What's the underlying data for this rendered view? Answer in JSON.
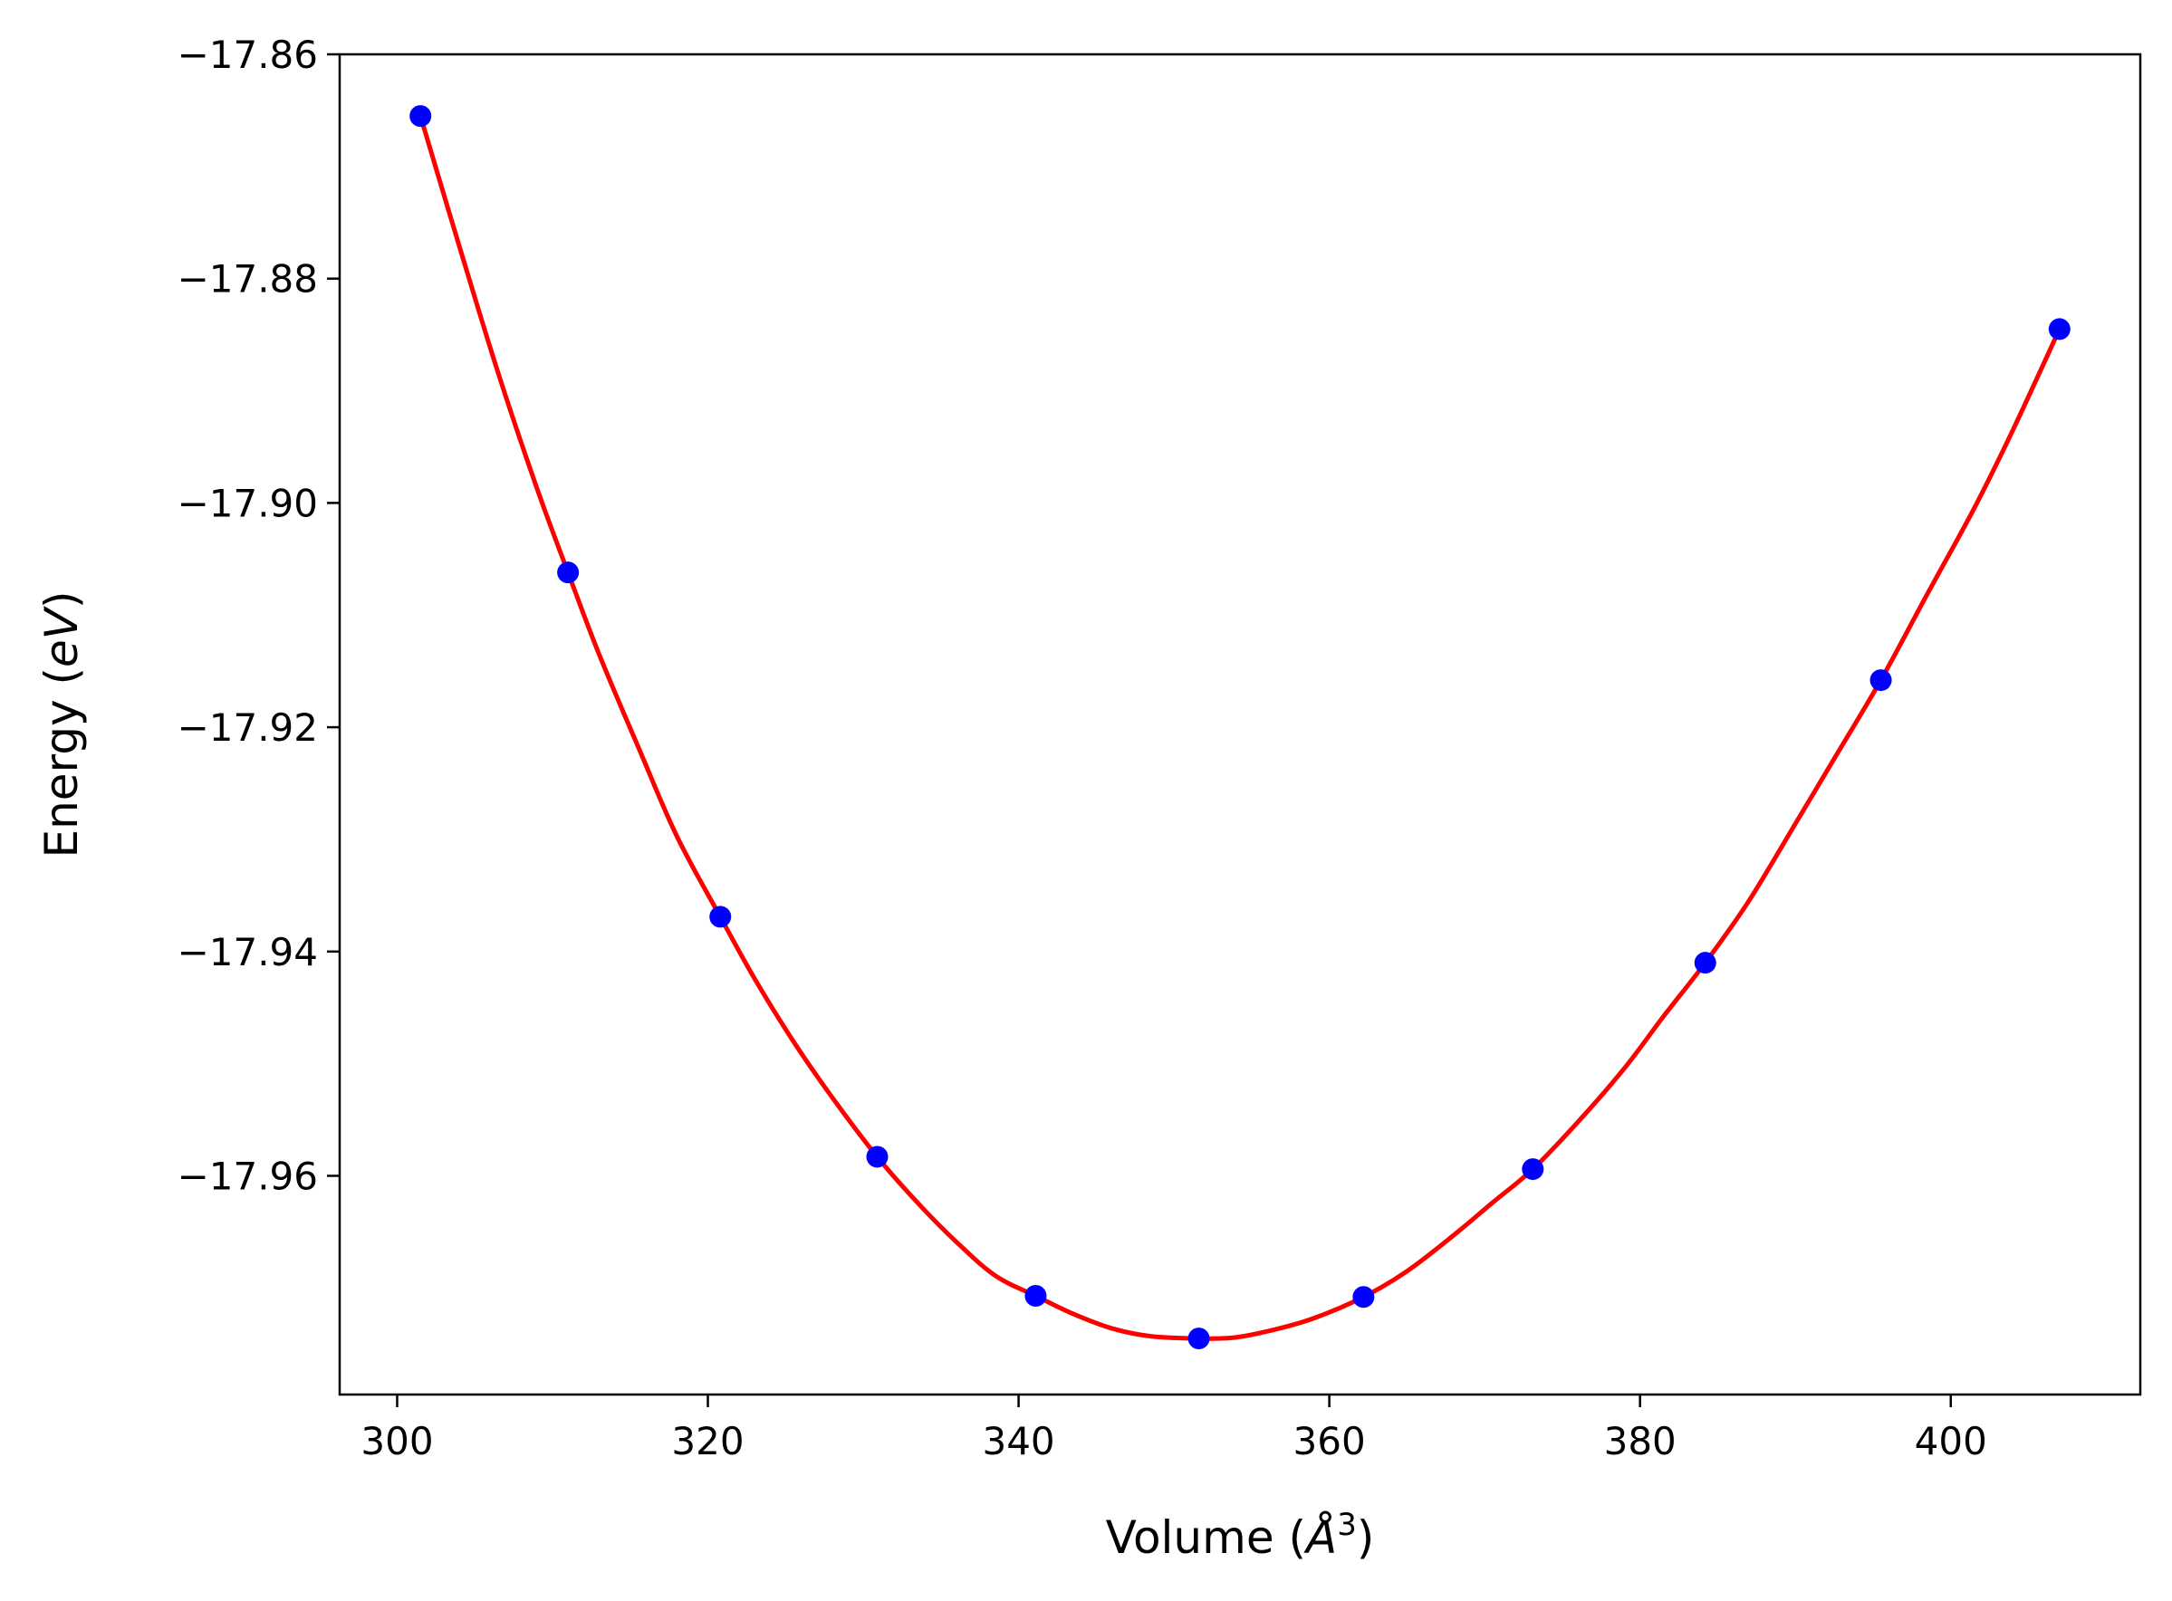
{
  "chart_data": {
    "type": "scatter",
    "xlabel": "Volume (Å³)",
    "ylabel": "Energy (eV)",
    "xlabel_parts": {
      "text": "Volume (",
      "symbol": "Å",
      "sup": "3",
      "close": ")"
    },
    "ylabel_parts": {
      "text": "Energy (",
      "italic": "eV",
      "close": ")"
    },
    "xlim": [
      296.3,
      412.2
    ],
    "ylim": [
      -17.9795,
      -17.86
    ],
    "xticks": [
      300,
      320,
      340,
      360,
      380,
      400
    ],
    "xtick_labels": [
      "300",
      "320",
      "340",
      "360",
      "380",
      "400"
    ],
    "yticks": [
      -17.86,
      -17.88,
      -17.9,
      -17.92,
      -17.94,
      -17.96
    ],
    "ytick_labels": [
      "−17.86",
      "−17.88",
      "−17.90",
      "−17.92",
      "−17.94",
      "−17.96"
    ],
    "grid": false,
    "series": [
      {
        "kind": "points",
        "color": "#0000ff",
        "x": [
          301.5,
          311.0,
          320.8,
          330.9,
          341.1,
          351.6,
          362.2,
          373.1,
          384.2,
          395.5,
          407.0
        ],
        "y": [
          -17.8655,
          -17.9062,
          -17.9369,
          -17.9583,
          -17.9707,
          -17.9745,
          -17.9708,
          -17.9594,
          -17.941,
          -17.9158,
          -17.8845
        ]
      },
      {
        "kind": "fit-curve",
        "color": "#ff0000",
        "x": [
          301.5,
          304.0,
          306.5,
          309.0,
          311.0,
          313.0,
          315.5,
          318.0,
          320.8,
          323.0,
          325.5,
          328.0,
          330.9,
          333.5,
          336.0,
          338.5,
          341.1,
          343.5,
          346.0,
          348.5,
          351.6,
          354.0,
          356.5,
          359.0,
          362.2,
          365.0,
          368.0,
          370.5,
          373.1,
          376.0,
          379.0,
          381.5,
          384.2,
          387.0,
          390.0,
          392.5,
          395.5,
          398.5,
          401.5,
          404.0,
          407.0
        ],
        "y": [
          -17.8655,
          -17.8771,
          -17.8884,
          -17.8987,
          -17.9062,
          -17.9135,
          -17.9217,
          -17.9297,
          -17.9369,
          -17.9424,
          -17.948,
          -17.953,
          -17.9583,
          -17.9624,
          -17.9659,
          -17.9689,
          -17.9707,
          -17.9723,
          -17.9736,
          -17.9743,
          -17.9745,
          -17.9744,
          -17.9737,
          -17.9727,
          -17.9708,
          -17.9685,
          -17.9653,
          -17.9624,
          -17.9594,
          -17.9552,
          -17.9504,
          -17.9458,
          -17.941,
          -17.9355,
          -17.9286,
          -17.9228,
          -17.9158,
          -17.9081,
          -17.9005,
          -17.8935,
          -17.8845
        ]
      }
    ]
  }
}
